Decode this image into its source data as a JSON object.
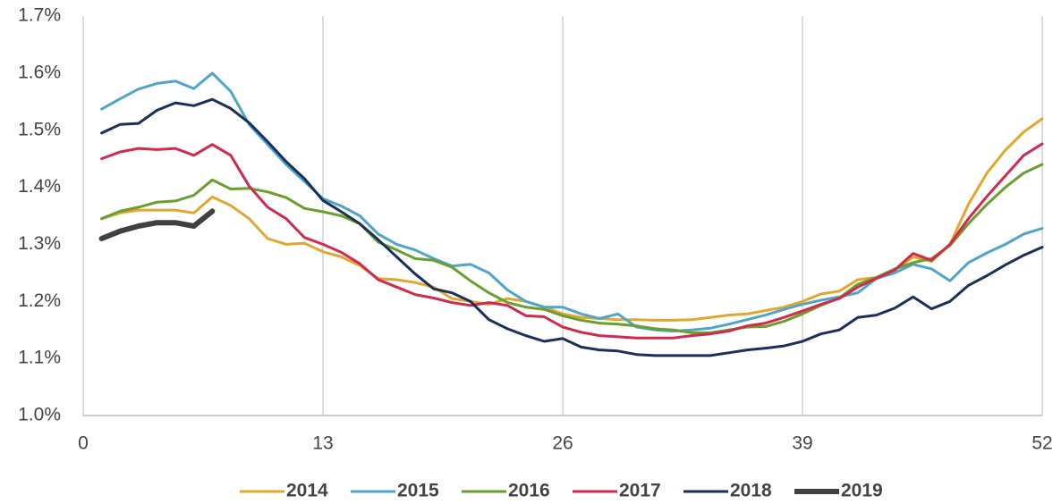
{
  "chart_data": {
    "type": "line",
    "x": [
      1,
      2,
      3,
      4,
      5,
      6,
      7,
      8,
      9,
      10,
      11,
      12,
      13,
      14,
      15,
      16,
      17,
      18,
      19,
      20,
      21,
      22,
      23,
      24,
      25,
      26,
      27,
      28,
      29,
      30,
      31,
      32,
      33,
      34,
      35,
      36,
      37,
      38,
      39,
      40,
      41,
      42,
      43,
      44,
      45,
      46,
      47,
      48,
      49,
      50,
      51,
      52
    ],
    "xlim": [
      0,
      52
    ],
    "xticks": [
      0,
      13,
      26,
      39,
      52
    ],
    "ylim": [
      1.0,
      1.7
    ],
    "yticks": [
      {
        "value": 1.0,
        "label": "1.0%"
      },
      {
        "value": 1.1,
        "label": "1.1%"
      },
      {
        "value": 1.2,
        "label": "1.2%"
      },
      {
        "value": 1.3,
        "label": "1.3%"
      },
      {
        "value": 1.4,
        "label": "1.4%"
      },
      {
        "value": 1.5,
        "label": "1.5%"
      },
      {
        "value": 1.6,
        "label": "1.6%"
      },
      {
        "value": 1.7,
        "label": "1.7%"
      }
    ],
    "grid": "x",
    "legend": "bottom",
    "series": [
      {
        "name": "2014",
        "color": "#e0a82e",
        "line_width": 3,
        "values": [
          1.345,
          1.355,
          1.36,
          1.36,
          1.36,
          1.355,
          1.383,
          1.368,
          1.345,
          1.31,
          1.3,
          1.302,
          1.287,
          1.278,
          1.263,
          1.24,
          1.238,
          1.233,
          1.225,
          1.205,
          1.2,
          1.195,
          1.205,
          1.2,
          1.19,
          1.178,
          1.172,
          1.17,
          1.168,
          1.168,
          1.167,
          1.167,
          1.168,
          1.172,
          1.176,
          1.178,
          1.184,
          1.19,
          1.2,
          1.213,
          1.218,
          1.238,
          1.242,
          1.255,
          1.278,
          1.27,
          1.3,
          1.37,
          1.425,
          1.465,
          1.497,
          1.52
        ]
      },
      {
        "name": "2015",
        "color": "#4ea5c8",
        "line_width": 3,
        "values": [
          1.537,
          1.555,
          1.572,
          1.582,
          1.586,
          1.573,
          1.6,
          1.568,
          1.51,
          1.475,
          1.44,
          1.41,
          1.38,
          1.367,
          1.35,
          1.318,
          1.3,
          1.29,
          1.275,
          1.262,
          1.265,
          1.25,
          1.22,
          1.2,
          1.19,
          1.19,
          1.178,
          1.17,
          1.178,
          1.155,
          1.15,
          1.148,
          1.15,
          1.153,
          1.16,
          1.168,
          1.176,
          1.186,
          1.195,
          1.202,
          1.208,
          1.215,
          1.24,
          1.25,
          1.265,
          1.257,
          1.236,
          1.268,
          1.285,
          1.3,
          1.318,
          1.328
        ]
      },
      {
        "name": "2016",
        "color": "#6a9f2d",
        "line_width": 3,
        "values": [
          1.345,
          1.358,
          1.365,
          1.374,
          1.376,
          1.386,
          1.413,
          1.397,
          1.398,
          1.392,
          1.382,
          1.363,
          1.357,
          1.35,
          1.336,
          1.304,
          1.29,
          1.275,
          1.272,
          1.26,
          1.236,
          1.215,
          1.198,
          1.19,
          1.186,
          1.175,
          1.167,
          1.162,
          1.16,
          1.157,
          1.152,
          1.15,
          1.145,
          1.145,
          1.15,
          1.155,
          1.156,
          1.165,
          1.178,
          1.193,
          1.206,
          1.23,
          1.242,
          1.257,
          1.268,
          1.275,
          1.298,
          1.336,
          1.37,
          1.4,
          1.425,
          1.44
        ]
      },
      {
        "name": "2017",
        "color": "#d02a4e",
        "line_width": 3,
        "values": [
          1.45,
          1.462,
          1.468,
          1.466,
          1.468,
          1.456,
          1.475,
          1.456,
          1.402,
          1.365,
          1.345,
          1.312,
          1.3,
          1.286,
          1.266,
          1.238,
          1.225,
          1.212,
          1.206,
          1.198,
          1.193,
          1.198,
          1.193,
          1.175,
          1.173,
          1.155,
          1.146,
          1.14,
          1.138,
          1.136,
          1.136,
          1.136,
          1.14,
          1.143,
          1.148,
          1.157,
          1.162,
          1.172,
          1.183,
          1.195,
          1.205,
          1.225,
          1.24,
          1.255,
          1.284,
          1.272,
          1.3,
          1.345,
          1.384,
          1.42,
          1.456,
          1.476
        ]
      },
      {
        "name": "2018",
        "color": "#1a2f5a",
        "line_width": 3,
        "values": [
          1.495,
          1.51,
          1.512,
          1.535,
          1.548,
          1.543,
          1.554,
          1.538,
          1.513,
          1.48,
          1.445,
          1.415,
          1.377,
          1.357,
          1.336,
          1.308,
          1.278,
          1.248,
          1.222,
          1.215,
          1.2,
          1.168,
          1.152,
          1.14,
          1.13,
          1.135,
          1.12,
          1.115,
          1.113,
          1.107,
          1.105,
          1.105,
          1.105,
          1.105,
          1.11,
          1.115,
          1.118,
          1.122,
          1.13,
          1.143,
          1.15,
          1.172,
          1.176,
          1.188,
          1.208,
          1.187,
          1.2,
          1.228,
          1.245,
          1.264,
          1.281,
          1.295
        ]
      },
      {
        "name": "2019",
        "color": "#404040",
        "line_width": 6,
        "values": [
          1.31,
          1.323,
          1.332,
          1.338,
          1.338,
          1.332,
          1.358,
          null,
          null,
          null,
          null,
          null,
          null,
          null,
          null,
          null,
          null,
          null,
          null,
          null,
          null,
          null,
          null,
          null,
          null,
          null,
          null,
          null,
          null,
          null,
          null,
          null,
          null,
          null,
          null,
          null,
          null,
          null,
          null,
          null,
          null,
          null,
          null,
          null,
          null,
          null,
          null,
          null,
          null,
          null,
          null,
          null
        ]
      }
    ]
  }
}
